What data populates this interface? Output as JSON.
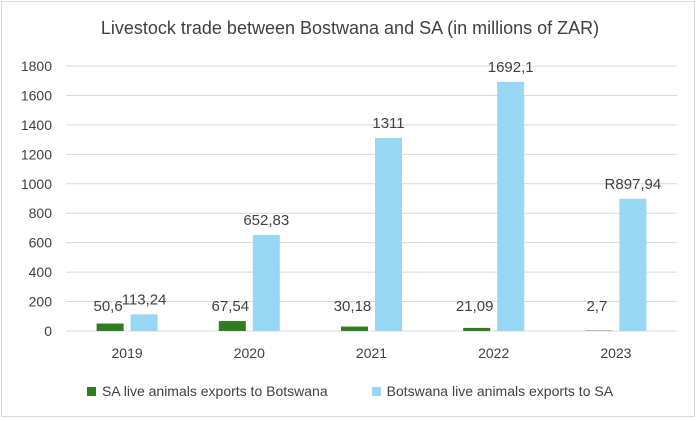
{
  "chart_data": {
    "type": "bar",
    "title": "Livestock trade between Bostwana and SA (in millions of ZAR)",
    "categories": [
      "2019",
      "2020",
      "2021",
      "2022",
      "2023"
    ],
    "series": [
      {
        "name": "SA live animals exports to Botswana",
        "color": "#2e7d1f",
        "values": [
          50.6,
          67.54,
          30.18,
          21.09,
          2.7
        ],
        "labels": [
          "50,6",
          "67,54",
          "30,18",
          "21,09",
          "2,7"
        ]
      },
      {
        "name": "Botswana live animals exports to SA",
        "color": "#97d7f3",
        "values": [
          113.24,
          652.83,
          1311,
          1692.1,
          897.94
        ],
        "labels": [
          "113,24",
          "652,83",
          "1311",
          "1692,1",
          "R897,94"
        ]
      }
    ],
    "ylim": [
      0,
      1800
    ],
    "yticks": [
      0,
      200,
      400,
      600,
      800,
      1000,
      1200,
      1400,
      1600,
      1800
    ],
    "grid": true,
    "legend": "bottom",
    "xlabel": "",
    "ylabel": ""
  }
}
